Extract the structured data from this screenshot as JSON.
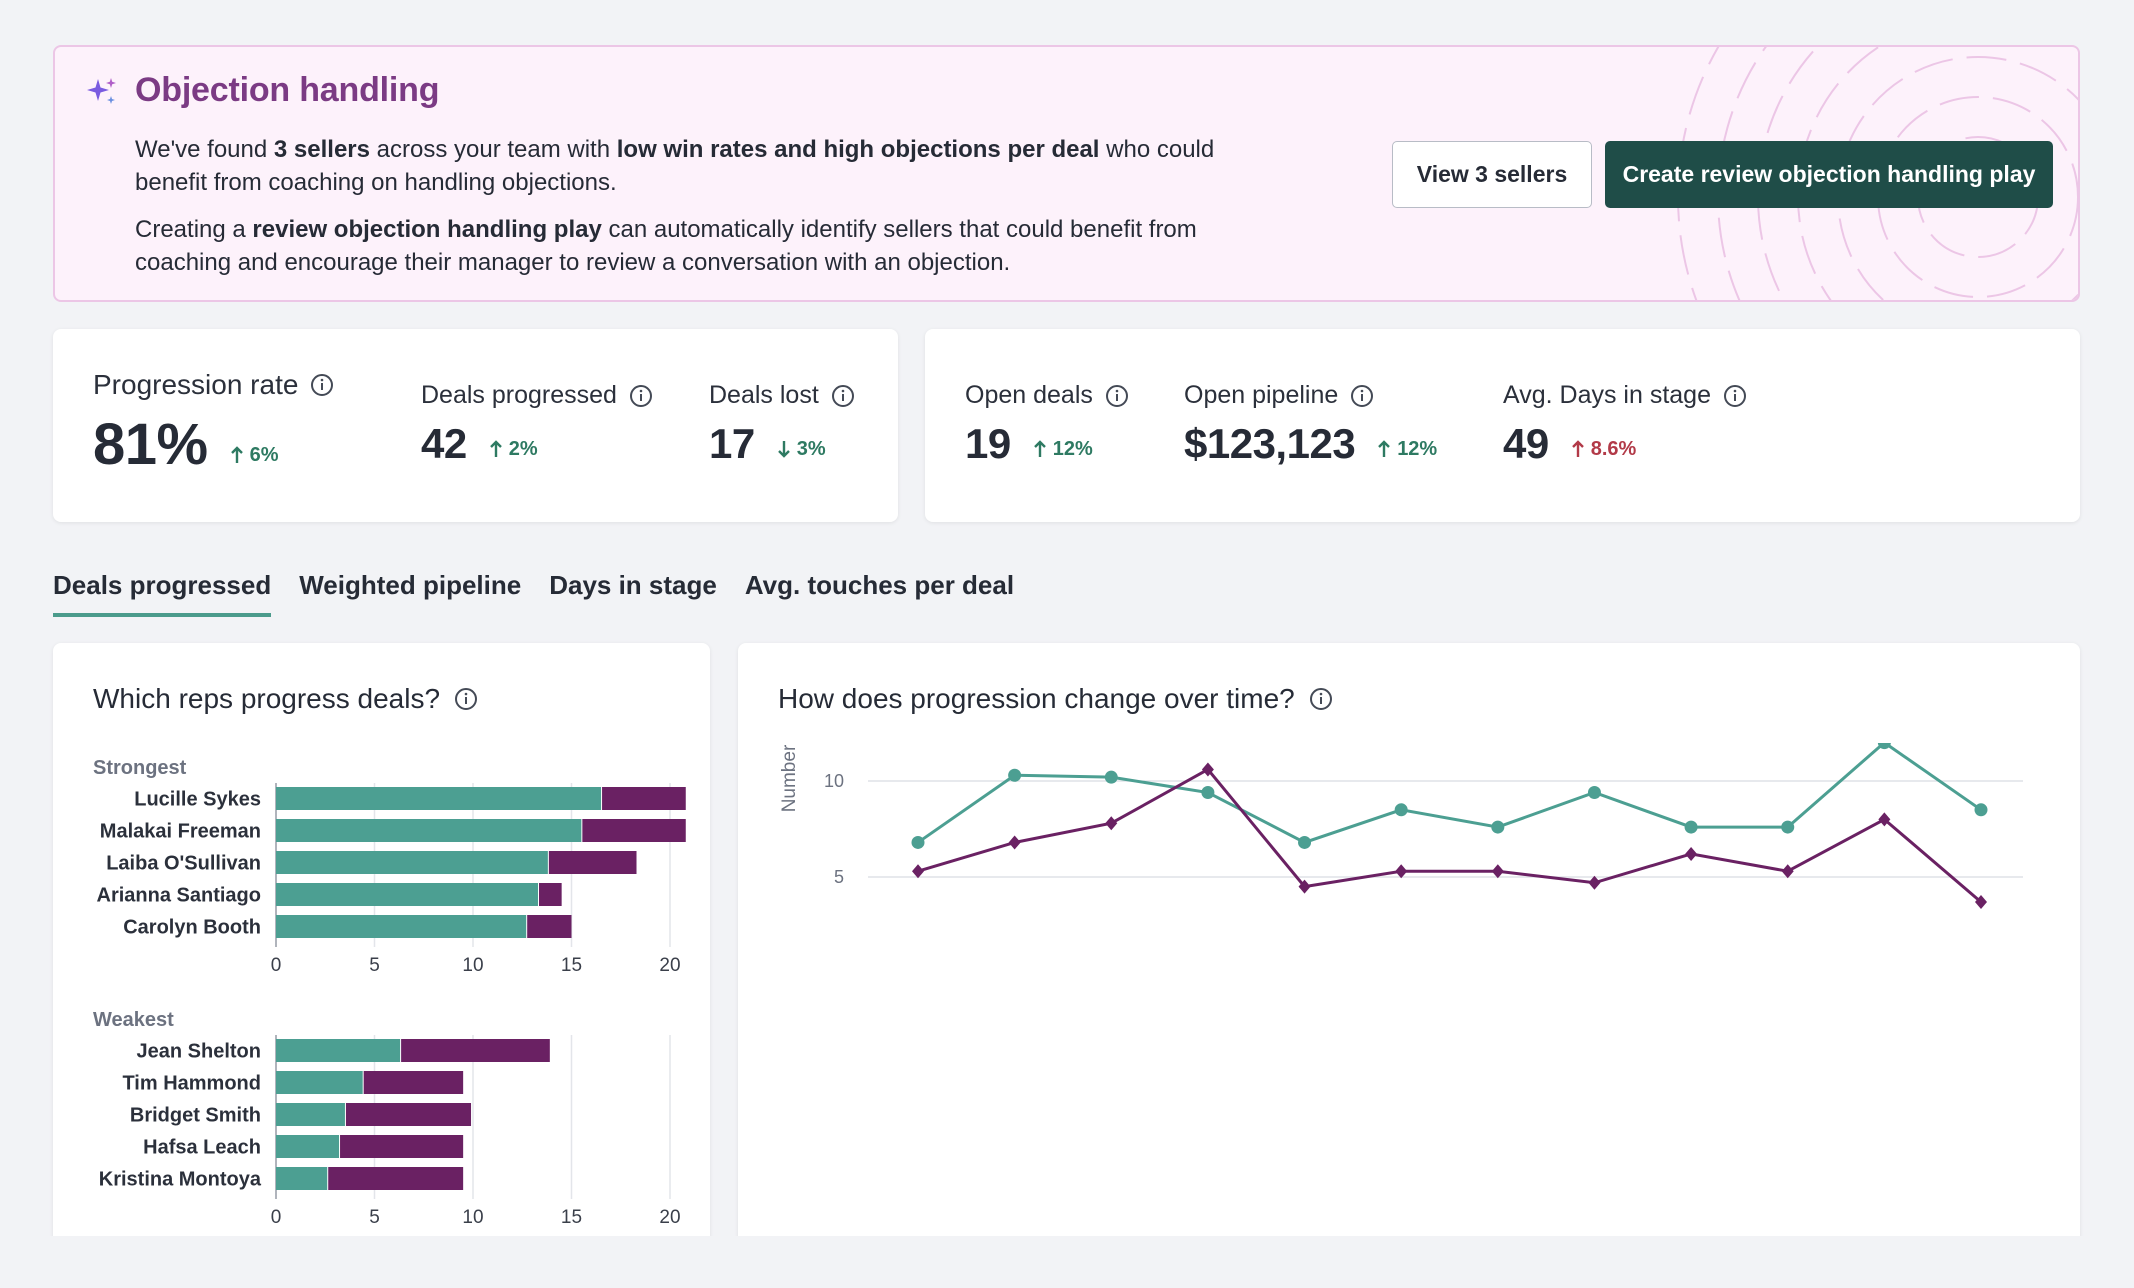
{
  "banner": {
    "title": "Objection handling",
    "p1_a": "We've found ",
    "p1_b": "3 sellers",
    "p1_c": " across your team with ",
    "p1_d": "low win rates and high objections per deal",
    "p1_e": " who could benefit from coaching on handling objections.",
    "p2_a": "Creating a ",
    "p2_b": "review objection handling play",
    "p2_c": " can automatically identify sellers that could benefit from coaching and encourage their manager to review a conversation with an objection.",
    "view_button": "View 3 sellers",
    "create_button": "Create review objection handling play",
    "icon": "sparkle-icon"
  },
  "metrics_left": {
    "progression_rate": {
      "label": "Progression rate",
      "value": "81%",
      "delta": "6%",
      "direction": "up"
    },
    "deals_progressed": {
      "label": "Deals progressed",
      "value": "42",
      "delta": "2%",
      "direction": "up"
    },
    "deals_lost": {
      "label": "Deals lost",
      "value": "17",
      "delta": "3%",
      "direction": "down"
    }
  },
  "metrics_right": {
    "open_deals": {
      "label": "Open deals",
      "value": "19",
      "delta": "12%",
      "direction": "up"
    },
    "open_pipeline": {
      "label": "Open pipeline",
      "value": "$123,123",
      "delta": "12%",
      "direction": "up"
    },
    "avg_days": {
      "label": "Avg. Days in stage",
      "value": "49",
      "delta": "8.6%",
      "direction": "up"
    }
  },
  "tabs": [
    "Deals progressed",
    "Weighted pipeline",
    "Days in stage",
    "Avg. touches per deal"
  ],
  "active_tab": 0,
  "colors": {
    "teal": "#4c9f92",
    "purple": "#6a2163",
    "accent": "#1f4d48",
    "tab_underline": "#4b9b8c"
  },
  "reps_chart": {
    "title": "Which reps progress deals?",
    "strongest_label": "Strongest",
    "weakest_label": "Weakest"
  },
  "time_chart": {
    "title": "How does progression change over time?"
  },
  "chart_data": [
    {
      "type": "bar",
      "stacked": true,
      "orientation": "horizontal",
      "group": "Strongest",
      "categories": [
        "Lucille Sykes",
        "Malakai Freeman",
        "Laiba O'Sullivan",
        "Arianna Santiago",
        "Carolyn Booth"
      ],
      "series": [
        {
          "color": "#4c9f92",
          "values": [
            16.5,
            15.5,
            13.8,
            13.3,
            12.7
          ]
        },
        {
          "color": "#6a2163",
          "values": [
            4.3,
            5.3,
            4.5,
            1.2,
            2.3
          ]
        }
      ],
      "xlim": [
        0,
        20
      ],
      "xticks": [
        0,
        5,
        10,
        15,
        20
      ],
      "grid": true
    },
    {
      "type": "bar",
      "stacked": true,
      "orientation": "horizontal",
      "group": "Weakest",
      "categories": [
        "Jean Shelton",
        "Tim Hammond",
        "Bridget Smith",
        "Hafsa Leach",
        "Kristina Montoya"
      ],
      "series": [
        {
          "color": "#4c9f92",
          "values": [
            6.3,
            4.4,
            3.5,
            3.2,
            2.6
          ]
        },
        {
          "color": "#6a2163",
          "values": [
            7.6,
            5.1,
            6.4,
            6.3,
            6.9
          ]
        }
      ],
      "xlim": [
        0,
        20
      ],
      "xticks": [
        0,
        5,
        10,
        15,
        20
      ],
      "grid": true
    },
    {
      "type": "line",
      "ylabel": "Number of deals",
      "ylim": [
        3,
        25
      ],
      "yticks": [
        5,
        10,
        15,
        20,
        25
      ],
      "x": [
        1,
        2,
        3,
        4,
        5,
        6,
        7,
        8,
        9,
        10,
        11,
        12
      ],
      "series": [
        {
          "color": "#4c9f92",
          "marker": "circle",
          "values": [
            6.8,
            10.3,
            10.2,
            9.4,
            6.8,
            8.5,
            7.6,
            9.4,
            7.6,
            7.6,
            12.0,
            8.5
          ]
        },
        {
          "color": "#6a2163",
          "marker": "diamond",
          "values": [
            5.3,
            6.8,
            7.8,
            10.6,
            4.5,
            5.3,
            5.3,
            4.7,
            6.2,
            5.3,
            8.0,
            3.7
          ]
        }
      ],
      "grid": true
    }
  ]
}
